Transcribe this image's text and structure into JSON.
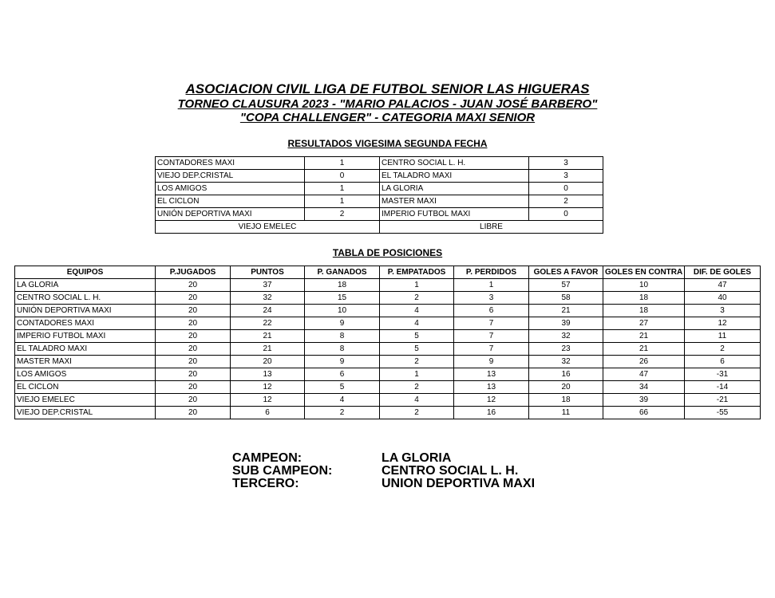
{
  "header": {
    "title": "ASOCIACION CIVIL LIGA DE FUTBOL SENIOR LAS HIGUERAS",
    "subtitle": "TORNEO CLAUSURA 2023 - \"MARIO PALACIOS - JUAN JOSÉ BARBERO\"",
    "cup": "\"COPA CHALLENGER\" - CATEGORIA MAXI SENIOR"
  },
  "results": {
    "title": "RESULTADOS VIGESIMA SEGUNDA FECHA",
    "rows": [
      [
        "CONTADORES MAXI",
        1,
        "CENTRO SOCIAL L. H.",
        3
      ],
      [
        "VIEJO DEP.CRISTAL",
        0,
        "EL TALADRO MAXI",
        3
      ],
      [
        "LOS AMIGOS",
        1,
        "LA GLORIA",
        0
      ],
      [
        "EL CICLON",
        1,
        "MASTER MAXI",
        2
      ],
      [
        "UNIÓN DEPORTIVA MAXI",
        2,
        "IMPERIO FUTBOL MAXI",
        0
      ]
    ],
    "bye": [
      "VIEJO EMELEC",
      "LIBRE"
    ]
  },
  "standings": {
    "title": "TABLA DE POSICIONES",
    "headers": [
      "EQUIPOS",
      "P.JUGADOS",
      "PUNTOS",
      "P. GANADOS",
      "P. EMPATADOS",
      "P. PERDIDOS",
      "GOLES A FAVOR",
      "GOLES EN CONTRA",
      "DIF. DE GOLES"
    ],
    "rows": [
      [
        "LA GLORIA",
        20,
        37,
        18,
        1,
        1,
        57,
        10,
        47
      ],
      [
        "CENTRO SOCIAL L. H.",
        20,
        32,
        15,
        2,
        3,
        58,
        18,
        40
      ],
      [
        "UNIÓN DEPORTIVA MAXI",
        20,
        24,
        10,
        4,
        6,
        21,
        18,
        3
      ],
      [
        "CONTADORES MAXI",
        20,
        22,
        9,
        4,
        7,
        39,
        27,
        12
      ],
      [
        "IMPERIO FUTBOL MAXI",
        20,
        21,
        8,
        5,
        7,
        32,
        21,
        11
      ],
      [
        "EL TALADRO MAXI",
        20,
        21,
        8,
        5,
        7,
        23,
        21,
        2
      ],
      [
        "MASTER MAXI",
        20,
        20,
        9,
        2,
        9,
        32,
        26,
        6
      ],
      [
        "LOS AMIGOS",
        20,
        13,
        6,
        1,
        13,
        16,
        47,
        -31
      ],
      [
        "EL CICLON",
        20,
        12,
        5,
        2,
        13,
        20,
        34,
        -14
      ],
      [
        "VIEJO EMELEC",
        20,
        12,
        4,
        4,
        12,
        18,
        39,
        -21
      ],
      [
        "VIEJO DEP.CRISTAL",
        20,
        6,
        2,
        2,
        16,
        11,
        66,
        -55
      ]
    ]
  },
  "podium": [
    [
      "CAMPEON:",
      "LA GLORIA"
    ],
    [
      "SUB CAMPEON:",
      "CENTRO SOCIAL L. H."
    ],
    [
      "TERCERO:",
      "UNION DEPORTIVA MAXI"
    ]
  ]
}
